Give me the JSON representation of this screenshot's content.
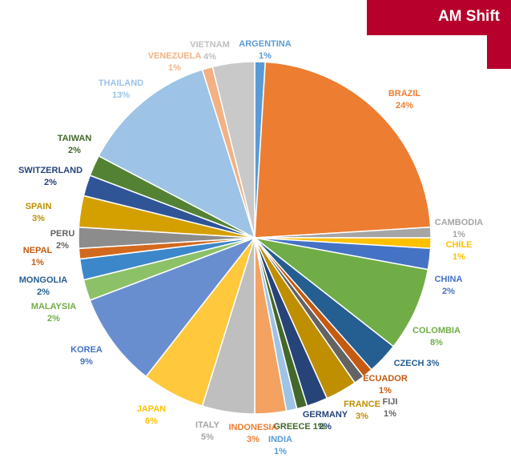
{
  "banner": {
    "title": "AM Shift",
    "color": "#b7002b"
  },
  "chart_data": {
    "type": "pie",
    "title": "",
    "slices": [
      {
        "name": "ARGENTINA",
        "value": 1,
        "label": "1%",
        "color": "#5b9bd5"
      },
      {
        "name": "BRAZIL",
        "value": 24,
        "label": "24%",
        "color": "#ed7d31"
      },
      {
        "name": "CAMBODIA",
        "value": 1,
        "label": "1%",
        "color": "#a5a5a5"
      },
      {
        "name": "CHILE",
        "value": 1,
        "label": "1%",
        "color": "#ffc000"
      },
      {
        "name": "CHINA",
        "value": 2,
        "label": "2%",
        "color": "#4472c4"
      },
      {
        "name": "COLOMBIA",
        "value": 8,
        "label": "8%",
        "color": "#70ad47"
      },
      {
        "name": "CZECH",
        "value": 3,
        "label": "3%",
        "color": "#255e91"
      },
      {
        "name": "ECUADOR",
        "value": 1,
        "label": "1%",
        "color": "#c55a11"
      },
      {
        "name": "FIJI",
        "value": 1,
        "label": "1%",
        "color": "#636363"
      },
      {
        "name": "FRANCE",
        "value": 3,
        "label": "3%",
        "color": "#bf8f00"
      },
      {
        "name": "GERMANY",
        "value": 2,
        "label": "2%",
        "color": "#264478"
      },
      {
        "name": "GREECE",
        "value": 1,
        "label": "1%",
        "color": "#43682b"
      },
      {
        "name": "INDIA",
        "value": 1,
        "label": "1%",
        "color": "#9dc3e6"
      },
      {
        "name": "INDONESIA",
        "value": 3,
        "label": "3%",
        "color": "#f4a261"
      },
      {
        "name": "ITALY",
        "value": 5,
        "label": "5%",
        "color": "#bfbfbf"
      },
      {
        "name": "JAPAN",
        "value": 6,
        "label": "6%",
        "color": "#ffc83d"
      },
      {
        "name": "KOREA",
        "value": 9,
        "label": "9%",
        "color": "#698ed0"
      },
      {
        "name": "MALAYSIA",
        "value": 2,
        "label": "2%",
        "color": "#8cc168"
      },
      {
        "name": "MONGOLIA",
        "value": 2,
        "label": "2%",
        "color": "#3c87c9"
      },
      {
        "name": "NEPAL",
        "value": 1,
        "label": "1%",
        "color": "#d2691e"
      },
      {
        "name": "PERU",
        "value": 2,
        "label": "2%",
        "color": "#8c8c8c"
      },
      {
        "name": "SPAIN",
        "value": 3,
        "label": "3%",
        "color": "#d4a000"
      },
      {
        "name": "SWITZERLAND",
        "value": 2,
        "label": "2%",
        "color": "#2f5597"
      },
      {
        "name": "TAIWAN",
        "value": 2,
        "label": "2%",
        "color": "#548235"
      },
      {
        "name": "THAILAND",
        "value": 13,
        "label": "13%",
        "color": "#9dc3e6"
      },
      {
        "name": "VENEZUELA",
        "value": 1,
        "label": "1%",
        "color": "#f4b183"
      },
      {
        "name": "VIETNAM",
        "value": 4,
        "label": "4%",
        "color": "#c9c9c9"
      }
    ],
    "label_colors": {
      "ARGENTINA": "#5b9bd5",
      "BRAZIL": "#ed7d31",
      "CAMBODIA": "#a5a5a5",
      "CHILE": "#ffc000",
      "CHINA": "#4472c4",
      "COLOMBIA": "#70ad47",
      "CZECH": "#255e91",
      "ECUADOR": "#c55a11",
      "FIJI": "#636363",
      "FRANCE": "#bf8f00",
      "GERMANY": "#264478",
      "GREECE": "#43682b",
      "INDIA": "#5b9bd5",
      "INDONESIA": "#ed7d31",
      "ITALY": "#a5a5a5",
      "JAPAN": "#ffc000",
      "KOREA": "#4472c4",
      "MALAYSIA": "#70ad47",
      "MONGOLIA": "#255e91",
      "NEPAL": "#c55a11",
      "PERU": "#636363",
      "SPAIN": "#bf8f00",
      "SWITZERLAND": "#264478",
      "TAIWAN": "#43682b",
      "THAILAND": "#9dc3e6",
      "VENEZUELA": "#f4b183",
      "VIETNAM": "#bfbfbf"
    }
  }
}
